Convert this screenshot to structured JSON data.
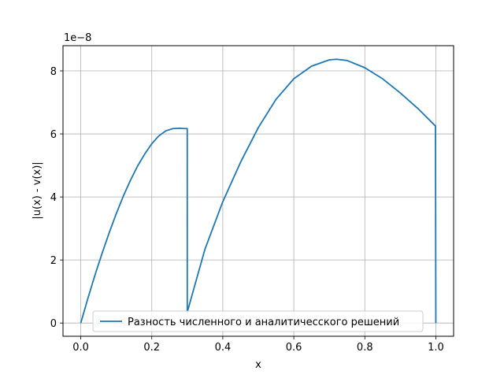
{
  "chart_data": {
    "type": "line",
    "title": "",
    "xlabel": "x",
    "ylabel": "|u(x) - v(x)|",
    "y_scale_label": "1e−8",
    "xlim": [
      -0.05,
      1.05
    ],
    "ylim": [
      -0.42,
      8.8
    ],
    "xticks": [
      0.0,
      0.2,
      0.4,
      0.6,
      0.8,
      1.0
    ],
    "xtick_labels": [
      "0.0",
      "0.2",
      "0.4",
      "0.6",
      "0.8",
      "1.0"
    ],
    "yticks": [
      0,
      2,
      4,
      6,
      8
    ],
    "ytick_labels": [
      "0",
      "2",
      "4",
      "6",
      "8"
    ],
    "grid": true,
    "legend_position": "lower-center",
    "series": [
      {
        "name": "Разность численного и аналитичесского решений",
        "color": "#1f77b4",
        "x": [
          0.0,
          0.02,
          0.04,
          0.06,
          0.08,
          0.1,
          0.12,
          0.14,
          0.16,
          0.18,
          0.2,
          0.22,
          0.24,
          0.26,
          0.28,
          0.29,
          0.2999,
          0.3,
          0.3001,
          0.32,
          0.35,
          0.4,
          0.45,
          0.5,
          0.55,
          0.6,
          0.65,
          0.7,
          0.72,
          0.75,
          0.8,
          0.85,
          0.9,
          0.95,
          0.999,
          1.0
        ],
        "values": [
          0.0,
          0.78,
          1.52,
          2.21,
          2.86,
          3.47,
          4.03,
          4.53,
          4.98,
          5.36,
          5.69,
          5.94,
          6.1,
          6.17,
          6.18,
          6.17,
          6.17,
          0.35,
          0.35,
          1.15,
          2.35,
          3.85,
          5.1,
          6.2,
          7.1,
          7.75,
          8.15,
          8.35,
          8.37,
          8.33,
          8.1,
          7.75,
          7.3,
          6.8,
          6.25,
          0.0
        ]
      }
    ]
  }
}
